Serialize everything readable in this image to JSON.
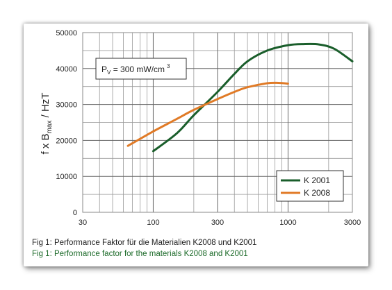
{
  "chart_data": {
    "type": "line",
    "x_scale": "log",
    "xlim": [
      30,
      3000
    ],
    "ylim": [
      0,
      50000
    ],
    "x_ticks": [
      "30",
      "100",
      "300",
      "1000",
      "3000"
    ],
    "x_tick_values": [
      30,
      100,
      300,
      1000,
      3000
    ],
    "y_ticks": [
      "0",
      "10000",
      "20000",
      "30000",
      "40000",
      "50000"
    ],
    "y_tick_values": [
      0,
      10000,
      20000,
      30000,
      40000,
      50000
    ],
    "ylabel": {
      "main": "f x B",
      "sub": "max",
      "unit": " / HzT"
    },
    "grid": true,
    "legend_position": "bottom-right",
    "annotation": {
      "prefix": "P",
      "sub": "V",
      "text": " = 300 mW/cm",
      "sup": "3"
    },
    "series": [
      {
        "name": "K 2001",
        "color": "#1a5e2b",
        "x": [
          100,
          150,
          200,
          300,
          400,
          500,
          700,
          1000,
          1300,
          1700,
          2200,
          3000
        ],
        "y": [
          17000,
          22000,
          27000,
          33500,
          38500,
          42000,
          45000,
          46500,
          46800,
          46700,
          45500,
          42000
        ]
      },
      {
        "name": "K 2008",
        "color": "#e07a26",
        "x": [
          65,
          100,
          150,
          200,
          300,
          400,
          500,
          700,
          850,
          1000
        ],
        "y": [
          18500,
          22500,
          26000,
          28500,
          31500,
          33500,
          34800,
          35900,
          36000,
          35800
        ]
      }
    ]
  },
  "captions": {
    "de": "Fig 1:  Performance Faktor für die Materialien K2008 und K2001",
    "en": "Fig 1:  Performance factor for the materials K2008 and K2001"
  }
}
